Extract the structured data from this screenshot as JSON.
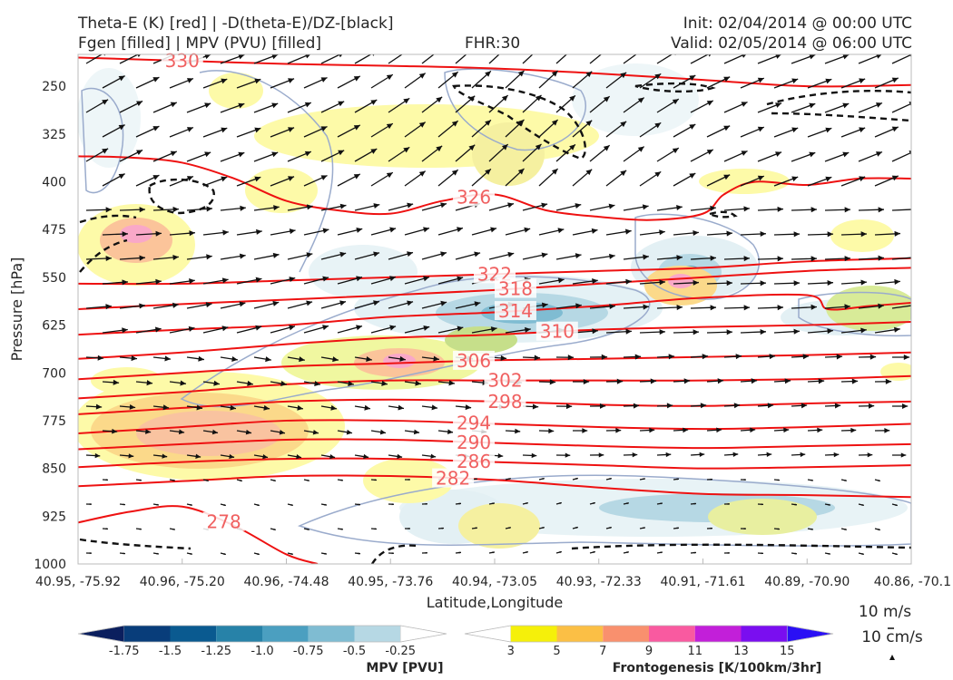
{
  "header": {
    "title_line1": "Theta-E (K) [red] | -D(theta-E)/DZ-[black]",
    "title_line2": "Fgen [filled] | MPV (PVU) [filled]",
    "fhr": "FHR:30",
    "init": "Init: 02/04/2014 @ 00:00 UTC",
    "valid": "Valid: 02/05/2014 @ 06:00 UTC"
  },
  "chart_data": {
    "type": "cross-section",
    "xlabel": "Latitude,Longitude",
    "ylabel": "Pressure [hPa]",
    "x_ticks": [
      "40.95, -75.92",
      "40.96, -75.20",
      "40.96, -74.48",
      "40.95, -73.76",
      "40.94, -73.05",
      "40.93, -72.33",
      "40.91, -71.61",
      "40.89, -70.90",
      "40.86, -70.1"
    ],
    "y_ticks": [
      250,
      325,
      400,
      475,
      550,
      625,
      700,
      775,
      850,
      925,
      1000
    ],
    "ylim": [
      200,
      1000
    ],
    "theta_e_color": "#ee1111",
    "theta_e_contours": [
      {
        "value": 330,
        "label": "330",
        "pts": [
          [
            0,
            205
          ],
          [
            1,
            210
          ],
          [
            2,
            215
          ],
          [
            3,
            218
          ],
          [
            4,
            222
          ],
          [
            5,
            230
          ],
          [
            6,
            240
          ],
          [
            7,
            250
          ],
          [
            8,
            248
          ]
        ]
      },
      {
        "value": 326,
        "label": "326",
        "pts": [
          [
            0,
            360
          ],
          [
            0.5,
            362
          ],
          [
            1,
            370
          ],
          [
            1.5,
            395
          ],
          [
            2,
            430
          ],
          [
            2.5,
            445
          ],
          [
            3,
            450
          ],
          [
            3.5,
            430
          ],
          [
            4,
            420
          ],
          [
            4.5,
            445
          ],
          [
            5,
            455
          ],
          [
            5.5,
            460
          ],
          [
            6,
            450
          ],
          [
            6.2,
            420
          ],
          [
            6.5,
            400
          ],
          [
            7,
            405
          ],
          [
            7.5,
            395
          ],
          [
            8,
            395
          ]
        ]
      },
      {
        "value": 322,
        "label": "322",
        "pts": [
          [
            0,
            560
          ],
          [
            1,
            560
          ],
          [
            2,
            555
          ],
          [
            3,
            550
          ],
          [
            4,
            545
          ],
          [
            5,
            540
          ],
          [
            6,
            535
          ],
          [
            7,
            525
          ],
          [
            8,
            520
          ]
        ]
      },
      {
        "value": 318,
        "label": "318",
        "pts": [
          [
            0,
            600
          ],
          [
            1,
            592
          ],
          [
            2,
            585
          ],
          [
            3,
            578
          ],
          [
            4,
            570
          ],
          [
            5,
            560
          ],
          [
            6,
            550
          ],
          [
            7,
            540
          ],
          [
            8,
            535
          ]
        ]
      },
      {
        "value": 314,
        "label": "314",
        "pts": [
          [
            0,
            640
          ],
          [
            1,
            632
          ],
          [
            2,
            625
          ],
          [
            3,
            612
          ],
          [
            4,
            605
          ],
          [
            5,
            595
          ],
          [
            6,
            582
          ],
          [
            7,
            578
          ],
          [
            7.2,
            600
          ],
          [
            7.6,
            595
          ],
          [
            8,
            590
          ]
        ]
      },
      {
        "value": 310,
        "label": "310",
        "pts": [
          [
            0,
            678
          ],
          [
            1,
            668
          ],
          [
            2,
            655
          ],
          [
            3,
            645
          ],
          [
            4,
            640
          ],
          [
            5,
            632
          ],
          [
            6,
            628
          ],
          [
            7,
            625
          ],
          [
            8,
            620
          ]
        ]
      },
      {
        "value": 306,
        "label": "306",
        "pts": [
          [
            0,
            710
          ],
          [
            1,
            700
          ],
          [
            2,
            690
          ],
          [
            3,
            685
          ],
          [
            4,
            680
          ],
          [
            5,
            678
          ],
          [
            6,
            675
          ],
          [
            7,
            672
          ],
          [
            8,
            668
          ]
        ]
      },
      {
        "value": 302,
        "label": "302",
        "pts": [
          [
            0,
            740
          ],
          [
            1,
            730
          ],
          [
            2,
            718
          ],
          [
            3,
            712
          ],
          [
            4,
            712
          ],
          [
            5,
            712
          ],
          [
            6,
            712
          ],
          [
            7,
            710
          ],
          [
            8,
            705
          ]
        ]
      },
      {
        "value": 298,
        "label": "298",
        "pts": [
          [
            0,
            765
          ],
          [
            1,
            755
          ],
          [
            2,
            745
          ],
          [
            3,
            742
          ],
          [
            4,
            745
          ],
          [
            5,
            750
          ],
          [
            6,
            752
          ],
          [
            7,
            748
          ],
          [
            8,
            745
          ]
        ]
      },
      {
        "value": 294,
        "label": "294",
        "pts": [
          [
            0,
            795
          ],
          [
            1,
            785
          ],
          [
            2,
            775
          ],
          [
            3,
            775
          ],
          [
            4,
            780
          ],
          [
            5,
            785
          ],
          [
            6,
            788
          ],
          [
            7,
            785
          ],
          [
            8,
            780
          ]
        ]
      },
      {
        "value": 290,
        "label": "290",
        "pts": [
          [
            0,
            820
          ],
          [
            1,
            812
          ],
          [
            2,
            805
          ],
          [
            3,
            805
          ],
          [
            4,
            810
          ],
          [
            5,
            815
          ],
          [
            6,
            818
          ],
          [
            7,
            815
          ],
          [
            8,
            812
          ]
        ]
      },
      {
        "value": 286,
        "label": "286",
        "pts": [
          [
            0,
            848
          ],
          [
            1,
            840
          ],
          [
            2,
            835
          ],
          [
            3,
            835
          ],
          [
            4,
            840
          ],
          [
            5,
            845
          ],
          [
            6,
            850
          ],
          [
            7,
            848
          ],
          [
            8,
            845
          ]
        ]
      },
      {
        "value": 282,
        "label": "282",
        "pts": [
          [
            0,
            878
          ],
          [
            1,
            870
          ],
          [
            2,
            862
          ],
          [
            3,
            862
          ],
          [
            4,
            868
          ],
          [
            5,
            880
          ],
          [
            6,
            890
          ],
          [
            7,
            892
          ],
          [
            8,
            895
          ]
        ]
      },
      {
        "value": 278,
        "label": "278",
        "pts": [
          [
            0,
            935
          ],
          [
            0.5,
            918
          ],
          [
            1,
            910
          ],
          [
            1.5,
            940
          ],
          [
            2,
            985
          ],
          [
            2.3,
            1000
          ]
        ]
      }
    ],
    "mpv_colorbar": {
      "label": "MPV [PVU]",
      "ticks": [
        "-1.75",
        "-1.5",
        "-1.25",
        "-1.0",
        "-0.75",
        "-0.5",
        "-0.25"
      ],
      "colors": [
        "#0b1f5e",
        "#083d7a",
        "#0a5a90",
        "#2782a8",
        "#4b9fc0",
        "#7fbcd2",
        "#b6d8e4",
        "#ffffff"
      ]
    },
    "fgen_colorbar": {
      "label": "Frontogenesis [K/100km/3hr]",
      "ticks": [
        "3",
        "5",
        "7",
        "9",
        "11",
        "13",
        "15"
      ],
      "colors": [
        "#ffffff",
        "#f5f00a",
        "#fbbf45",
        "#f9906e",
        "#f95aa0",
        "#c21fd9",
        "#7a0ef0",
        "#2a10f5"
      ]
    },
    "wind_reference": {
      "u_label": "10 m/s",
      "w_label": "10 cm/s"
    },
    "grid": true
  }
}
